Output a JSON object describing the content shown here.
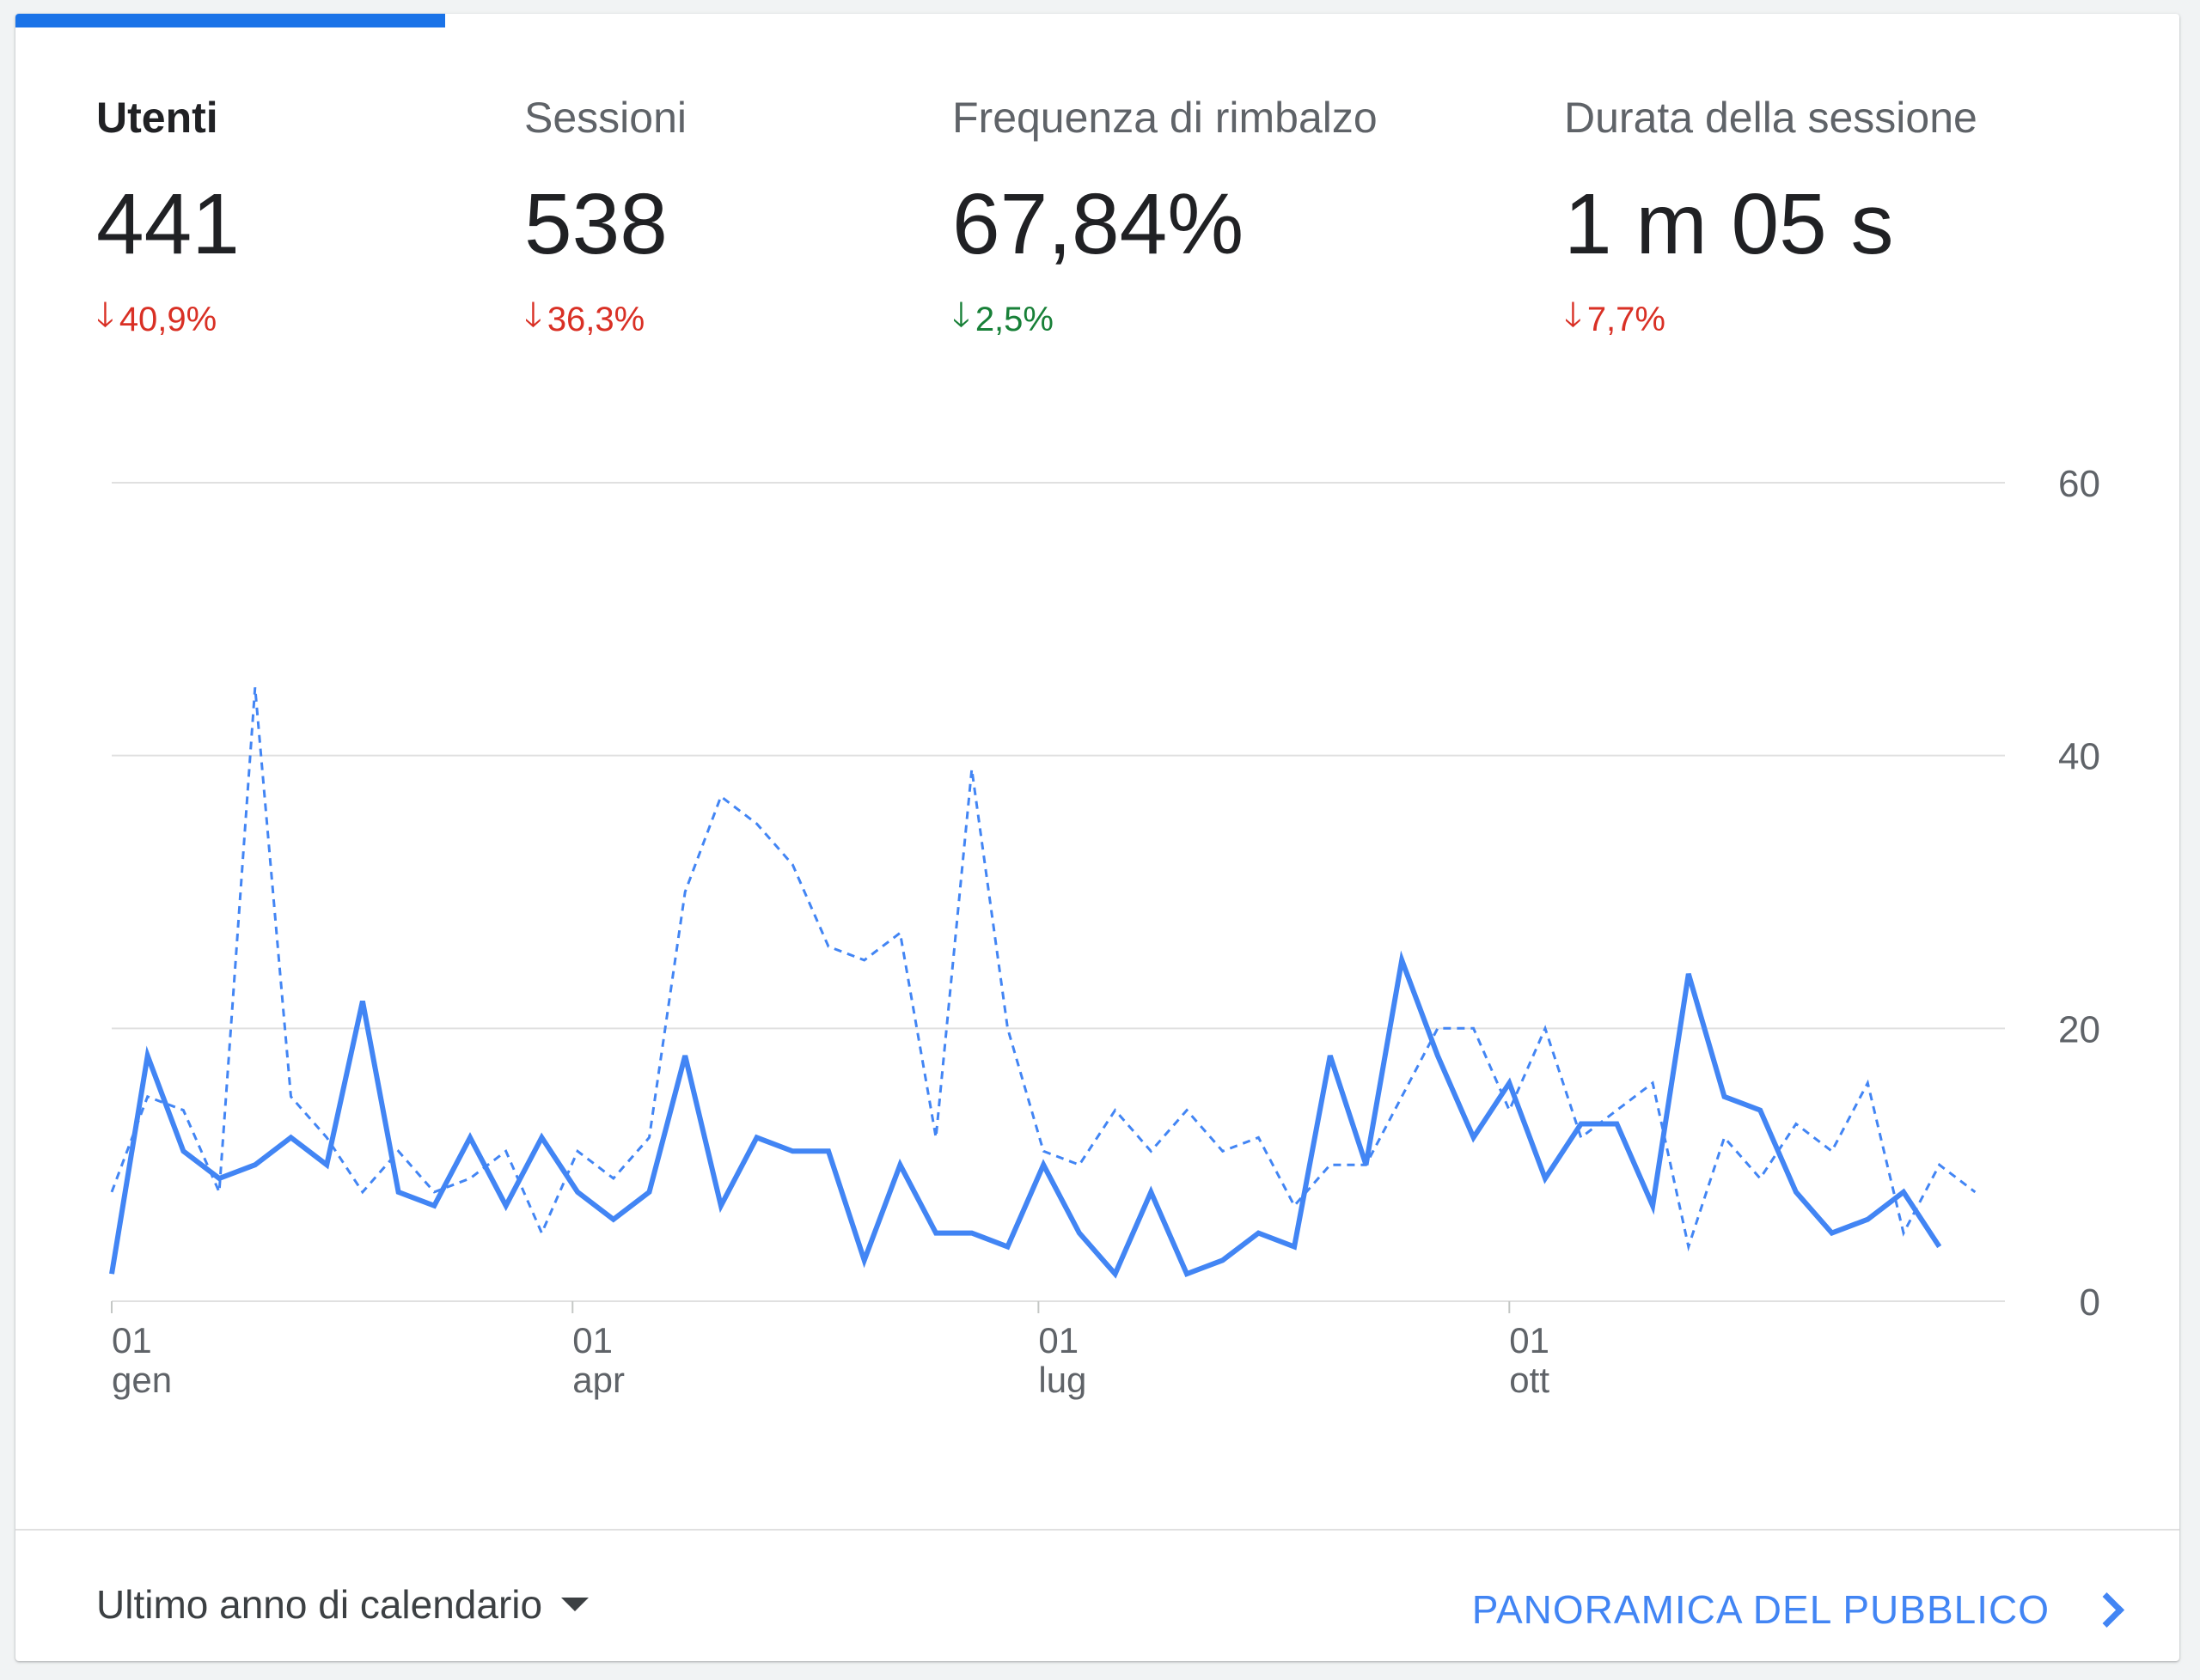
{
  "metrics": [
    {
      "label": "Utenti",
      "value": "441",
      "change": "40,9%",
      "direction": "down",
      "change_color": "#d93025",
      "active": true
    },
    {
      "label": "Sessioni",
      "value": "538",
      "change": "36,3%",
      "direction": "down",
      "change_color": "#d93025",
      "active": false
    },
    {
      "label": "Frequenza di rimbalzo",
      "value": "67,84%",
      "change": "2,5%",
      "direction": "down",
      "change_color": "#188038",
      "active": false
    },
    {
      "label": "Durata della sessione",
      "value": "1 m 05 s",
      "change": "7,7%",
      "direction": "down",
      "change_color": "#d93025",
      "active": false
    }
  ],
  "footer": {
    "range_label": "Ultimo anno di calendario",
    "audience_link": "PANORAMICA DEL PUBBLICO"
  },
  "colors": {
    "accent": "#1a73e8",
    "series": "#4285f4",
    "grid": "#e0e0e0"
  },
  "chart_data": {
    "type": "line",
    "title": "",
    "xlabel": "",
    "ylabel": "",
    "ylim": [
      0,
      60
    ],
    "y_ticks": [
      0,
      20,
      40,
      60
    ],
    "y_axis_position": "right",
    "grid": true,
    "legend": "none",
    "x_ticks": [
      {
        "week": 0,
        "day": "01",
        "month": "gen"
      },
      {
        "week": 12.86,
        "day": "01",
        "month": "apr"
      },
      {
        "week": 25.86,
        "day": "01",
        "month": "lug"
      },
      {
        "week": 39,
        "day": "01",
        "month": "ott"
      }
    ],
    "series": [
      {
        "name": "",
        "style": "solid",
        "values": [
          2,
          18,
          11,
          9,
          10,
          12,
          10,
          22,
          8,
          7,
          12,
          7,
          12,
          8,
          6,
          8,
          18,
          7,
          12,
          11,
          11,
          3,
          10,
          5,
          5,
          4,
          10,
          5,
          2,
          8,
          2,
          3,
          5,
          4,
          18,
          10,
          25,
          18,
          12,
          16,
          9,
          13,
          13,
          7,
          24,
          15,
          14,
          8,
          5,
          6,
          8,
          4
        ]
      },
      {
        "name": "",
        "style": "dashed",
        "values": [
          8,
          15,
          14,
          8,
          45,
          15,
          12,
          8,
          11,
          8,
          9,
          11,
          5,
          11,
          9,
          12,
          30,
          37,
          35,
          32,
          26,
          25,
          27,
          12,
          39,
          20,
          11,
          10,
          14,
          11,
          14,
          11,
          12,
          7,
          10,
          10,
          15,
          20,
          20,
          14,
          20,
          12,
          14,
          16,
          4,
          12,
          9,
          13,
          11,
          16,
          5,
          10,
          8
        ]
      }
    ]
  }
}
